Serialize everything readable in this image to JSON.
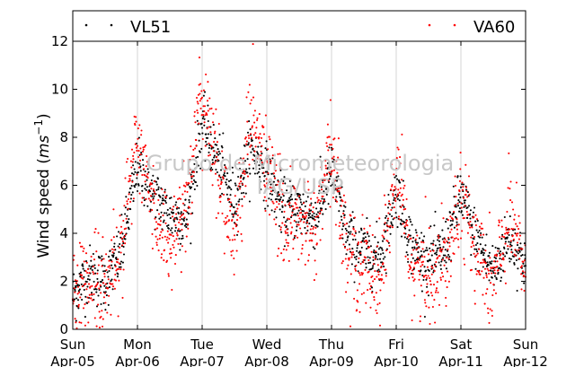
{
  "chart_data": {
    "type": "scatter",
    "ylabel": "Wind speed",
    "ylabel_unit_base": "ms",
    "ylabel_unit_exp": "−1",
    "ylim": [
      0,
      12
    ],
    "yticks": [
      0,
      2,
      4,
      6,
      8,
      10,
      12
    ],
    "xlim": [
      "2014-04-05T00:00",
      "2014-04-12T00:00"
    ],
    "xticks": [
      {
        "weekday": "Sun",
        "date": "Apr-05"
      },
      {
        "weekday": "Mon",
        "date": "Apr-06"
      },
      {
        "weekday": "Tue",
        "date": "Apr-07"
      },
      {
        "weekday": "Wed",
        "date": "Apr-08"
      },
      {
        "weekday": "Thu",
        "date": "Apr-09"
      },
      {
        "weekday": "Fri",
        "date": "Apr-10"
      },
      {
        "weekday": "Sat",
        "date": "Apr-11"
      },
      {
        "weekday": "Sun",
        "date": "Apr-12"
      }
    ],
    "grid": "vertical-day-lines",
    "legend_placement": "top (above plot, spanning width)",
    "watermark": [
      "Grupo de Micrometeorologia",
      "IAG/USP"
    ],
    "series": [
      {
        "name": "VL51",
        "color": "#000000",
        "profile": [
          {
            "x": "Apr-05 00:00",
            "y": 1.4
          },
          {
            "x": "Apr-05 06:00",
            "y": 2.3
          },
          {
            "x": "Apr-05 12:00",
            "y": 2.0
          },
          {
            "x": "Apr-05 18:00",
            "y": 3.2
          },
          {
            "x": "Apr-06 00:00",
            "y": 6.8
          },
          {
            "x": "Apr-06 06:00",
            "y": 5.6
          },
          {
            "x": "Apr-06 12:00",
            "y": 4.8
          },
          {
            "x": "Apr-06 18:00",
            "y": 4.5
          },
          {
            "x": "Apr-07 00:00",
            "y": 8.5
          },
          {
            "x": "Apr-07 06:00",
            "y": 7.0
          },
          {
            "x": "Apr-07 12:00",
            "y": 5.3
          },
          {
            "x": "Apr-07 18:00",
            "y": 7.5
          },
          {
            "x": "Apr-08 00:00",
            "y": 6.5
          },
          {
            "x": "Apr-08 06:00",
            "y": 5.0
          },
          {
            "x": "Apr-08 12:00",
            "y": 5.0
          },
          {
            "x": "Apr-08 18:00",
            "y": 4.6
          },
          {
            "x": "Apr-09 00:00",
            "y": 6.6
          },
          {
            "x": "Apr-09 06:00",
            "y": 3.8
          },
          {
            "x": "Apr-09 12:00",
            "y": 3.2
          },
          {
            "x": "Apr-09 18:00",
            "y": 3.0
          },
          {
            "x": "Apr-10 00:00",
            "y": 5.8
          },
          {
            "x": "Apr-10 06:00",
            "y": 3.4
          },
          {
            "x": "Apr-10 12:00",
            "y": 2.8
          },
          {
            "x": "Apr-10 18:00",
            "y": 3.3
          },
          {
            "x": "Apr-11 00:00",
            "y": 5.6
          },
          {
            "x": "Apr-11 06:00",
            "y": 3.6
          },
          {
            "x": "Apr-11 12:00",
            "y": 2.4
          },
          {
            "x": "Apr-11 18:00",
            "y": 3.8
          },
          {
            "x": "Apr-12 00:00",
            "y": 2.8
          }
        ],
        "spread": 1.0
      },
      {
        "name": "VA60",
        "color": "#ff0000",
        "profile": [
          {
            "x": "Apr-05 00:00",
            "y": 1.2
          },
          {
            "x": "Apr-05 06:00",
            "y": 2.1
          },
          {
            "x": "Apr-05 12:00",
            "y": 1.8
          },
          {
            "x": "Apr-05 18:00",
            "y": 3.6
          },
          {
            "x": "Apr-06 00:00",
            "y": 7.8
          },
          {
            "x": "Apr-06 06:00",
            "y": 5.0
          },
          {
            "x": "Apr-06 12:00",
            "y": 3.6
          },
          {
            "x": "Apr-06 18:00",
            "y": 5.2
          },
          {
            "x": "Apr-07 00:00",
            "y": 9.8
          },
          {
            "x": "Apr-07 06:00",
            "y": 6.5
          },
          {
            "x": "Apr-07 12:00",
            "y": 3.8
          },
          {
            "x": "Apr-07 18:00",
            "y": 8.8
          },
          {
            "x": "Apr-08 00:00",
            "y": 6.8
          },
          {
            "x": "Apr-08 06:00",
            "y": 4.5
          },
          {
            "x": "Apr-08 12:00",
            "y": 4.5
          },
          {
            "x": "Apr-08 18:00",
            "y": 4.0
          },
          {
            "x": "Apr-09 00:00",
            "y": 7.4
          },
          {
            "x": "Apr-09 06:00",
            "y": 3.2
          },
          {
            "x": "Apr-09 12:00",
            "y": 2.6
          },
          {
            "x": "Apr-09 18:00",
            "y": 2.3
          },
          {
            "x": "Apr-10 00:00",
            "y": 6.2
          },
          {
            "x": "Apr-10 06:00",
            "y": 2.8
          },
          {
            "x": "Apr-10 12:00",
            "y": 2.2
          },
          {
            "x": "Apr-10 18:00",
            "y": 3.0
          },
          {
            "x": "Apr-11 00:00",
            "y": 5.8
          },
          {
            "x": "Apr-11 06:00",
            "y": 3.0
          },
          {
            "x": "Apr-11 12:00",
            "y": 1.8
          },
          {
            "x": "Apr-11 18:00",
            "y": 4.6
          },
          {
            "x": "Apr-12 00:00",
            "y": 2.4
          }
        ],
        "spread": 1.6
      }
    ]
  }
}
